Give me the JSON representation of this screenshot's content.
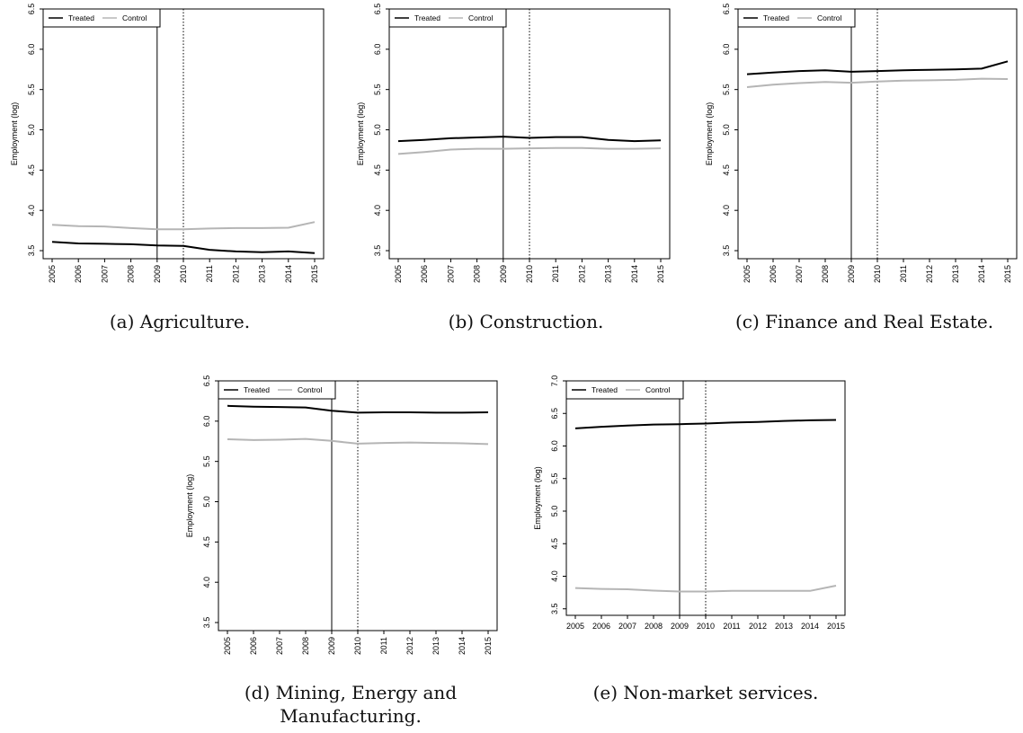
{
  "legend": {
    "treated": "Treated",
    "control": "Control"
  },
  "colors": {
    "treated": "#000000",
    "control": "#b5b5b5"
  },
  "chart_data": [
    {
      "type": "line",
      "caption": "(a) Agriculture.",
      "ylabel": "Employment (log)",
      "xlabel": "",
      "ylim": [
        3.4,
        6.5
      ],
      "yticks": [
        "3.5",
        "4.0",
        "4.5",
        "5.0",
        "5.5",
        "6.0",
        "6.5"
      ],
      "x": [
        "2005",
        "2006",
        "2007",
        "2008",
        "2009",
        "2010",
        "2011",
        "2012",
        "2013",
        "2014",
        "2015"
      ],
      "rotate_xticks": true,
      "vlines": [
        {
          "x": "2009",
          "style": "solid"
        },
        {
          "x": "2010",
          "style": "dotted"
        }
      ],
      "legend_position": "top-left",
      "series": [
        {
          "name": "Treated",
          "values": [
            3.61,
            3.59,
            3.585,
            3.58,
            3.565,
            3.56,
            3.51,
            3.49,
            3.48,
            3.49,
            3.47
          ]
        },
        {
          "name": "Control",
          "values": [
            3.82,
            3.805,
            3.8,
            3.78,
            3.765,
            3.765,
            3.775,
            3.78,
            3.78,
            3.785,
            3.855
          ]
        }
      ]
    },
    {
      "type": "line",
      "caption": "(b) Construction.",
      "ylabel": "Employment (log)",
      "xlabel": "",
      "ylim": [
        3.4,
        6.5
      ],
      "yticks": [
        "3.5",
        "4.0",
        "4.5",
        "5.0",
        "5.5",
        "6.0",
        "6.5"
      ],
      "x": [
        "2005",
        "2006",
        "2007",
        "2008",
        "2009",
        "2010",
        "2011",
        "2012",
        "2013",
        "2014",
        "2015"
      ],
      "rotate_xticks": true,
      "vlines": [
        {
          "x": "2009",
          "style": "solid"
        },
        {
          "x": "2010",
          "style": "dotted"
        }
      ],
      "legend_position": "top-left",
      "series": [
        {
          "name": "Treated",
          "values": [
            4.86,
            4.875,
            4.895,
            4.905,
            4.915,
            4.9,
            4.91,
            4.91,
            4.875,
            4.86,
            4.87
          ]
        },
        {
          "name": "Control",
          "values": [
            4.7,
            4.725,
            4.755,
            4.765,
            4.765,
            4.77,
            4.775,
            4.775,
            4.765,
            4.765,
            4.77
          ]
        }
      ]
    },
    {
      "type": "line",
      "caption": "(c) Finance and Real Estate.",
      "ylabel": "Employment (log)",
      "xlabel": "",
      "ylim": [
        3.4,
        6.5
      ],
      "yticks": [
        "3.5",
        "4.0",
        "4.5",
        "5.0",
        "5.5",
        "6.0",
        "6.5"
      ],
      "x": [
        "2005",
        "2006",
        "2007",
        "2008",
        "2009",
        "2010",
        "2011",
        "2012",
        "2013",
        "2014",
        "2015"
      ],
      "rotate_xticks": true,
      "vlines": [
        {
          "x": "2009",
          "style": "solid"
        },
        {
          "x": "2010",
          "style": "dotted"
        }
      ],
      "legend_position": "top-left",
      "series": [
        {
          "name": "Treated",
          "values": [
            5.69,
            5.71,
            5.73,
            5.74,
            5.72,
            5.73,
            5.74,
            5.745,
            5.75,
            5.76,
            5.85
          ]
        },
        {
          "name": "Control",
          "values": [
            5.53,
            5.56,
            5.58,
            5.595,
            5.585,
            5.6,
            5.61,
            5.615,
            5.62,
            5.635,
            5.63
          ]
        }
      ]
    },
    {
      "type": "line",
      "caption": "(d) Mining, Energy and Manufacturing.",
      "ylabel": "Employment (log)",
      "xlabel": "",
      "ylim": [
        3.4,
        6.5
      ],
      "yticks": [
        "3.5",
        "4.0",
        "4.5",
        "5.0",
        "5.5",
        "6.0",
        "6.5"
      ],
      "x": [
        "2005",
        "2006",
        "2007",
        "2008",
        "2009",
        "2010",
        "2011",
        "2012",
        "2013",
        "2014",
        "2015"
      ],
      "rotate_xticks": true,
      "vlines": [
        {
          "x": "2009",
          "style": "solid"
        },
        {
          "x": "2010",
          "style": "dotted"
        }
      ],
      "legend_position": "top-left",
      "series": [
        {
          "name": "Treated",
          "values": [
            6.19,
            6.18,
            6.175,
            6.17,
            6.13,
            6.105,
            6.11,
            6.11,
            6.105,
            6.105,
            6.11
          ]
        },
        {
          "name": "Control",
          "values": [
            5.775,
            5.765,
            5.77,
            5.78,
            5.755,
            5.72,
            5.73,
            5.735,
            5.73,
            5.725,
            5.715
          ]
        }
      ]
    },
    {
      "type": "line",
      "caption": "(e) Non-market services.",
      "ylabel": "Employment (log)",
      "xlabel": "",
      "ylim": [
        3.4,
        7.0
      ],
      "yticks": [
        "3.5",
        "4.0",
        "4.5",
        "5.0",
        "5.5",
        "6.0",
        "6.5",
        "7.0"
      ],
      "x": [
        "2005",
        "2006",
        "2007",
        "2008",
        "2009",
        "2010",
        "2011",
        "2012",
        "2013",
        "2014",
        "2015"
      ],
      "rotate_xticks": false,
      "vlines": [
        {
          "x": "2009",
          "style": "solid"
        },
        {
          "x": "2010",
          "style": "dotted"
        }
      ],
      "legend_position": "top-left",
      "series": [
        {
          "name": "Treated",
          "values": [
            6.27,
            6.295,
            6.315,
            6.33,
            6.335,
            6.345,
            6.36,
            6.37,
            6.385,
            6.395,
            6.4
          ]
        },
        {
          "name": "Control",
          "values": [
            3.82,
            3.805,
            3.8,
            3.78,
            3.765,
            3.765,
            3.775,
            3.775,
            3.775,
            3.775,
            3.855
          ]
        }
      ]
    }
  ]
}
